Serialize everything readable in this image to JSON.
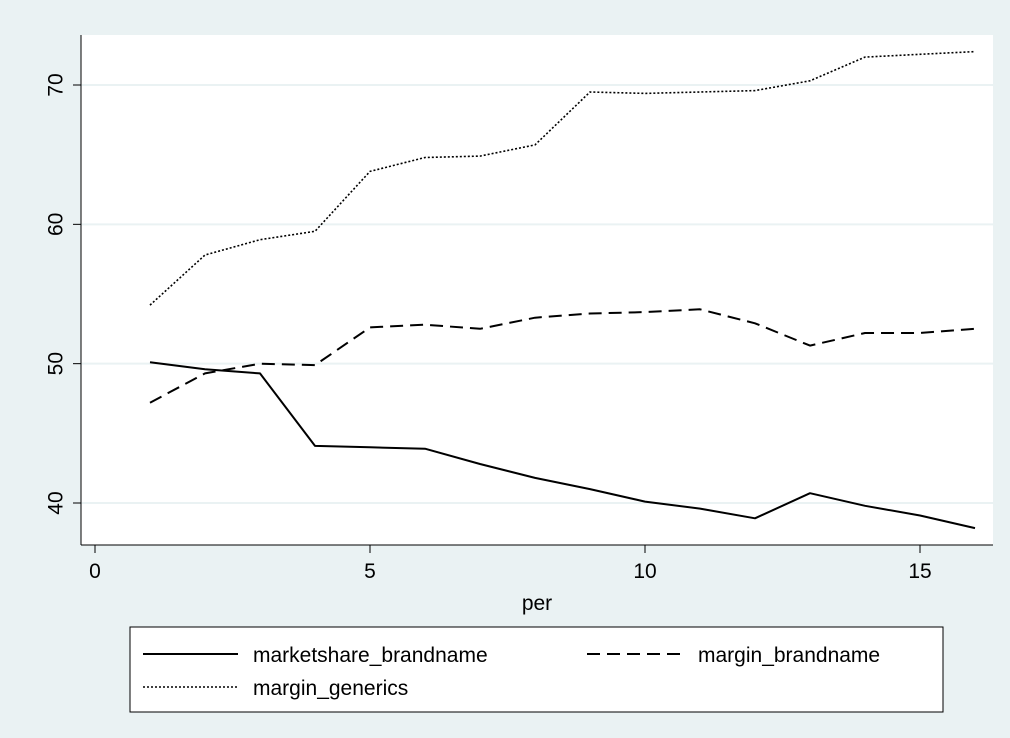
{
  "chart_data": {
    "type": "line",
    "xlabel": "per",
    "ylabel": "",
    "xlim": [
      0,
      16
    ],
    "ylim": [
      38,
      73.5
    ],
    "x_ticks": [
      0,
      5,
      10,
      15
    ],
    "y_ticks": [
      40,
      50,
      60,
      70
    ],
    "x_tick_labels": [
      "0",
      "5",
      "10",
      "15"
    ],
    "y_tick_labels": [
      "40",
      "50",
      "60",
      "70"
    ],
    "grid": "horizontal",
    "legend_position": "bottom",
    "x": [
      1,
      2,
      3,
      4,
      5,
      6,
      7,
      8,
      9,
      10,
      11,
      12,
      13,
      14,
      15,
      16
    ],
    "series": [
      {
        "name": "marketshare_brandname",
        "style": "solid",
        "color": "#000000",
        "values": [
          50.1,
          49.6,
          49.3,
          44.1,
          44.0,
          43.9,
          42.8,
          41.8,
          41.0,
          40.1,
          39.6,
          38.9,
          40.7,
          39.8,
          39.1,
          38.2
        ]
      },
      {
        "name": "margin_brandname",
        "style": "dashed",
        "color": "#000000",
        "values": [
          47.2,
          49.3,
          50.0,
          49.9,
          52.6,
          52.8,
          52.5,
          53.3,
          53.6,
          53.7,
          53.9,
          52.9,
          51.3,
          52.2,
          52.2,
          52.5
        ]
      },
      {
        "name": "margin_generics",
        "style": "dotted",
        "color": "#000000",
        "values": [
          54.2,
          57.8,
          58.9,
          59.5,
          63.8,
          64.8,
          64.9,
          65.7,
          69.5,
          69.4,
          69.5,
          69.6,
          70.3,
          72.0,
          72.2,
          72.4
        ]
      }
    ]
  },
  "colors": {
    "outer_background": "#eaf2f3",
    "plot_background": "#ffffff",
    "grid": "#eaf2f3",
    "line": "#000000"
  }
}
